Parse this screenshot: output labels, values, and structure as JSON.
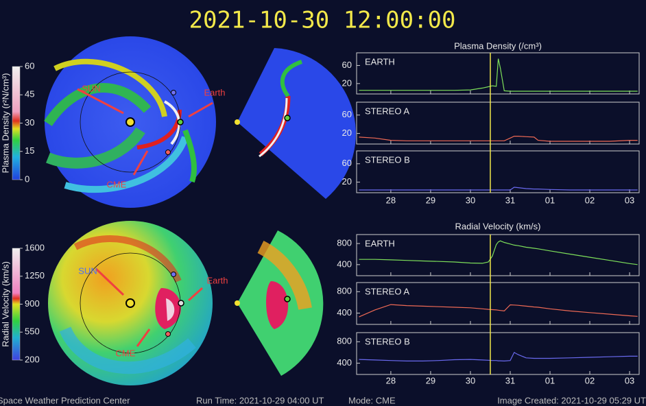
{
  "title": "2021-10-30 12:00:00",
  "footer": [
    "Space Weather Prediction Center",
    "Run Time: 2021-10-29 04:00 UT",
    "Mode: CME",
    "Image Created: 2021-10-29 05:29 UT"
  ],
  "colorbars": [
    {
      "label": "Plasma Density (r²N/cm³)",
      "lim": [
        0,
        60
      ],
      "ticks": [
        0,
        15,
        30,
        45,
        60
      ]
    },
    {
      "label": "Radial Velocity (km/s)",
      "lim": [
        200,
        1600
      ],
      "ticks": [
        200,
        550,
        900,
        1250,
        1600
      ]
    }
  ],
  "annotations": [
    [
      {
        "text": "SUN"
      },
      {
        "text": "Earth"
      },
      {
        "text": "CME"
      }
    ],
    [
      {
        "text": "SUN"
      },
      {
        "text": "Earth"
      },
      {
        "text": "CME"
      }
    ]
  ],
  "chart_data": [
    {
      "type": "line",
      "title": "Plasma Density (/cm³)",
      "time_marker": 2.5,
      "xlim": [
        -0.86,
        6.24
      ],
      "xticks": [
        {
          "value": 0,
          "label": "28"
        },
        {
          "value": 1,
          "label": "29"
        },
        {
          "value": 2,
          "label": "30"
        },
        {
          "value": 3,
          "label": "31"
        },
        {
          "value": 4,
          "label": "01"
        },
        {
          "value": 5,
          "label": "02"
        },
        {
          "value": 6,
          "label": "03"
        }
      ],
      "ylim": [
        -3,
        88
      ],
      "yticks": [
        20,
        60
      ],
      "x": [
        -0.8,
        -0.4,
        0,
        0.4,
        0.8,
        1.2,
        1.6,
        2.0,
        2.3,
        2.45,
        2.55,
        2.65,
        2.7,
        2.75,
        2.85,
        3.0,
        3.1,
        3.2,
        3.4,
        3.6,
        3.7,
        4.0,
        4.5,
        5.0,
        5.5,
        6.0,
        6.2
      ],
      "series": [
        {
          "name": "EARTH",
          "color": "#7ee05a",
          "values": [
            5,
            5,
            5,
            5,
            5,
            5,
            5,
            6,
            10,
            13,
            15,
            14,
            75,
            55,
            4,
            3,
            3,
            3,
            3,
            3,
            3,
            3,
            3,
            3,
            3,
            3,
            3
          ]
        },
        {
          "name": "STEREO A",
          "color": "#f06a55",
          "values": [
            12,
            10,
            5,
            4,
            4,
            4,
            4,
            4,
            4,
            4,
            4,
            4,
            4,
            4,
            4,
            10,
            14,
            14,
            13,
            12,
            5,
            3,
            3,
            3,
            3,
            5,
            5
          ]
        },
        {
          "name": "STEREO B",
          "color": "#6a6af0",
          "values": [
            3,
            3,
            3,
            3,
            3,
            3,
            3,
            3,
            3,
            3,
            3,
            3,
            3,
            3,
            3,
            3,
            9,
            8,
            6,
            5,
            5,
            4,
            3,
            3,
            3,
            3,
            3
          ]
        }
      ]
    },
    {
      "type": "line",
      "title": "Radial Velocity (km/s)",
      "time_marker": 2.5,
      "xlim": [
        -0.86,
        6.24
      ],
      "xticks": [
        {
          "value": 0,
          "label": "28"
        },
        {
          "value": 1,
          "label": "29"
        },
        {
          "value": 2,
          "label": "30"
        },
        {
          "value": 3,
          "label": "31"
        },
        {
          "value": 4,
          "label": "01"
        },
        {
          "value": 5,
          "label": "02"
        },
        {
          "value": 6,
          "label": "03"
        }
      ],
      "ylim": [
        190,
        970
      ],
      "yticks": [
        400,
        800
      ],
      "x": [
        -0.8,
        -0.4,
        0,
        0.4,
        0.8,
        1.2,
        1.6,
        2.0,
        2.3,
        2.45,
        2.55,
        2.65,
        2.7,
        2.75,
        2.85,
        3.0,
        3.1,
        3.2,
        3.4,
        3.6,
        3.7,
        4.0,
        4.5,
        5.0,
        5.5,
        6.0,
        6.2
      ],
      "series": [
        {
          "name": "EARTH",
          "color": "#7ee05a",
          "values": [
            500,
            500,
            490,
            480,
            470,
            460,
            450,
            430,
            425,
            450,
            560,
            780,
            830,
            850,
            820,
            790,
            770,
            760,
            730,
            710,
            700,
            660,
            600,
            540,
            480,
            420,
            400
          ]
        },
        {
          "name": "STEREO A",
          "color": "#f06a55",
          "values": [
            330,
            460,
            560,
            540,
            530,
            520,
            510,
            500,
            480,
            470,
            465,
            460,
            455,
            450,
            440,
            555,
            550,
            545,
            530,
            515,
            510,
            480,
            440,
            410,
            380,
            350,
            340
          ]
        },
        {
          "name": "STEREO B",
          "color": "#6a6af0",
          "values": [
            470,
            460,
            450,
            440,
            440,
            450,
            465,
            470,
            460,
            455,
            450,
            450,
            445,
            445,
            440,
            450,
            600,
            560,
            500,
            490,
            490,
            490,
            500,
            510,
            520,
            530,
            530
          ]
        }
      ]
    }
  ]
}
